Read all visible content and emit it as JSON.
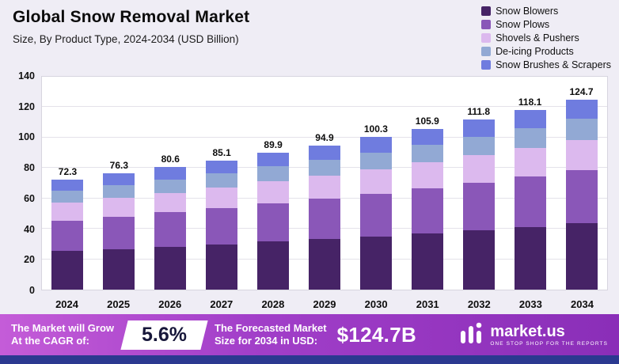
{
  "header": {
    "title": "Global Snow Removal Market",
    "subtitle": "Size, By Product Type, 2024-2034 (USD Billion)"
  },
  "chart_data": {
    "type": "bar",
    "stacked": true,
    "title": "Global Snow Removal Market",
    "subtitle": "Size, By Product Type, 2024-2034 (USD Billion)",
    "unit": "USD Billion",
    "categories": [
      "2024",
      "2025",
      "2026",
      "2027",
      "2028",
      "2029",
      "2030",
      "2031",
      "2032",
      "2033",
      "2034"
    ],
    "series": [
      {
        "name": "Snow Blowers",
        "color": "#462366",
        "values": [
          25.3,
          26.7,
          28.2,
          29.8,
          31.5,
          33.2,
          35.1,
          37.1,
          39.1,
          41.3,
          43.6
        ]
      },
      {
        "name": "Snow Plows",
        "color": "#8A57B8",
        "values": [
          20.2,
          21.4,
          22.6,
          23.8,
          25.2,
          26.6,
          28.1,
          29.7,
          31.3,
          33.1,
          34.9
        ]
      },
      {
        "name": "Shovels & Pushers",
        "color": "#DCB9EE",
        "values": [
          11.6,
          12.2,
          12.9,
          13.6,
          14.4,
          15.2,
          16.0,
          16.9,
          17.9,
          18.9,
          20.0
        ]
      },
      {
        "name": "De-icing Products",
        "color": "#92A9D4",
        "values": [
          8.0,
          8.4,
          8.8,
          9.4,
          9.9,
          10.4,
          11.0,
          11.6,
          12.3,
          13.0,
          13.7
        ]
      },
      {
        "name": "Snow Brushes & Scrapers",
        "color": "#6F7CDF",
        "values": [
          7.2,
          7.6,
          8.1,
          8.5,
          8.9,
          9.5,
          10.1,
          10.6,
          11.2,
          11.8,
          12.5
        ]
      }
    ],
    "totals": [
      "72.3",
      "76.3",
      "80.6",
      "85.1",
      "89.9",
      "94.9",
      "100.3",
      "105.9",
      "111.8",
      "118.1",
      "124.7"
    ],
    "ylim": [
      0,
      140
    ],
    "yticks": [
      0,
      20,
      40,
      60,
      80,
      100,
      120,
      140
    ],
    "grid": true,
    "legend_position": "top-right"
  },
  "banner": {
    "cagr_label_line1": "The Market will Grow",
    "cagr_label_line2": "At the CAGR of:",
    "cagr_value": "5.6%",
    "forecast_label_line1": "The Forecasted Market",
    "forecast_label_line2": "Size for 2034 in USD:",
    "forecast_value": "$124.7B",
    "brand": {
      "name": "market.us",
      "tagline": "ONE STOP SHOP FOR THE REPORTS"
    }
  }
}
